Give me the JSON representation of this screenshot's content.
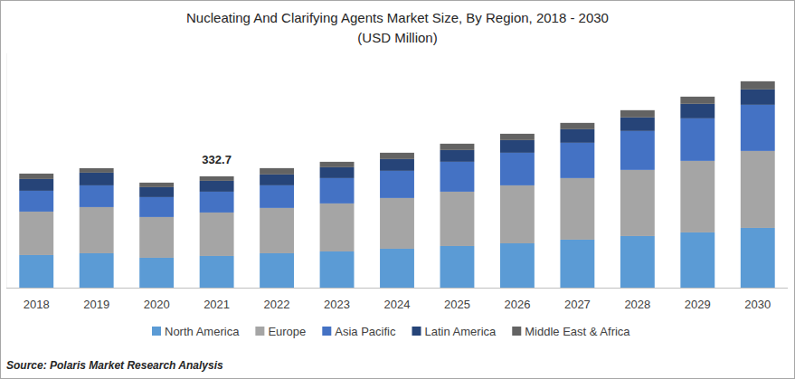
{
  "chart_data": {
    "type": "bar",
    "stacked": true,
    "title": "Nucleating And Clarifying Agents Market Size, By Region, 2018 - 2030",
    "subtitle": "(USD Million)",
    "source": "Source: Polaris Market Research Analysis",
    "categories": [
      "2018",
      "2019",
      "2020",
      "2021",
      "2022",
      "2023",
      "2024",
      "2025",
      "2026",
      "2027",
      "2028",
      "2029",
      "2030"
    ],
    "series": [
      {
        "name": "North America",
        "color": "#5b9bd5",
        "values": [
          97.4,
          102.8,
          89.3,
          94.7,
          102.8,
          108.2,
          116.3,
          124.4,
          132.5,
          143.4,
          154.2,
          165.0,
          178.5
        ]
      },
      {
        "name": "Europe",
        "color": "#a5a5a5",
        "values": [
          129.8,
          137.9,
          121.7,
          129.8,
          135.3,
          143.4,
          151.5,
          162.3,
          173.1,
          183.9,
          197.5,
          213.7,
          229.9
        ]
      },
      {
        "name": "Asia Pacific",
        "color": "#4472c4",
        "values": [
          62.2,
          64.9,
          59.5,
          62.2,
          67.6,
          75.7,
          81.2,
          89.3,
          97.4,
          105.5,
          116.3,
          127.1,
          137.9
        ]
      },
      {
        "name": "Latin America",
        "color": "#264478",
        "values": [
          35.2,
          37.9,
          29.8,
          32.5,
          32.5,
          32.5,
          35.2,
          35.2,
          37.9,
          40.6,
          40.6,
          43.3,
          46.0
        ]
      },
      {
        "name": "Middle East & Africa",
        "color": "#636363",
        "values": [
          16.2,
          13.5,
          13.5,
          13.5,
          18.9,
          16.2,
          18.9,
          18.9,
          18.9,
          18.9,
          21.6,
          21.6,
          24.3
        ]
      }
    ],
    "annotations": [
      {
        "x": "2021",
        "value": 332.7,
        "label": "332.7"
      }
    ],
    "ylim": [
      0,
      700
    ],
    "tick_labels": "x",
    "grid": false,
    "legend": "bottom"
  }
}
